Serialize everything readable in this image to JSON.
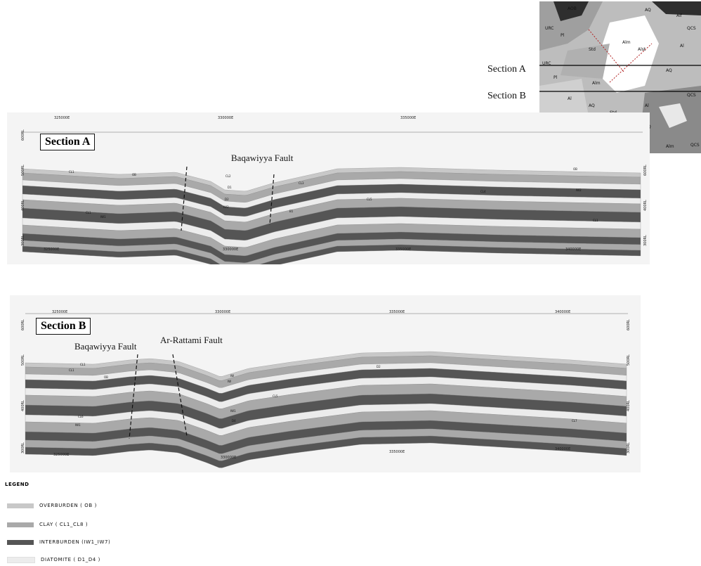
{
  "section_a": {
    "title": "Section A",
    "fault_label": "Baqawiyya Fault",
    "top_eastings": [
      "325000E",
      "330000E",
      "335000E"
    ],
    "bottom_eastings": [
      "325000E",
      "330000E",
      "335000E",
      "340000E"
    ],
    "left_rl": [
      "600RL",
      "500RL",
      "400RL",
      "300RL"
    ],
    "right_rl": [
      "600RL",
      "400RL",
      "300RL"
    ],
    "layer_tags": [
      "CL1",
      "OB",
      "CL2",
      "D1",
      "CL3",
      "D2",
      "IW2",
      "CL5",
      "B1",
      "IW1",
      "CL4",
      "IW2",
      "OB",
      "CL1",
      "CL1"
    ]
  },
  "section_b": {
    "title": "Section B",
    "fault_labels": [
      "Baqawiyya Fault",
      "Ar-Rattami Fault"
    ],
    "top_eastings": [
      "325000E",
      "330000E",
      "335000E",
      "340000E"
    ],
    "bottom_eastings": [
      "325000E",
      "330000E",
      "335000E",
      "340000E"
    ],
    "left_rl": [
      "600RL",
      "500RL",
      "400RL",
      "300RL"
    ],
    "right_rl": [
      "600RL",
      "500RL",
      "400RL",
      "300RL"
    ],
    "layer_tags": [
      "CL1",
      "CL1",
      "OB",
      "IW",
      "D2",
      "IW",
      "CL5",
      "IW1",
      "D4",
      "CL6",
      "IW1",
      "CL7"
    ]
  },
  "map": {
    "section_labels": [
      "Section A",
      "Section B"
    ],
    "unit_labels": [
      "AOB",
      "AQ",
      "Alf",
      "URC",
      "Pl",
      "Alm",
      "Std",
      "Alst",
      "Al",
      "QCS",
      "URC",
      "Pl",
      "AQ",
      "Al",
      "Alm",
      "AQ",
      "Std",
      "Alst",
      "Al",
      "QCS",
      "Pl",
      "AQ",
      "Alm",
      "Pl",
      "QCS"
    ]
  },
  "legend": {
    "title": "LEGEND",
    "items": [
      {
        "label": "OVERBURDEN ( OB )",
        "color": "#c8c8c8"
      },
      {
        "label": "CLAY ( CL1_CL8 )",
        "color": "#a9a9a9"
      },
      {
        "label": "INTERBURDEN (IW1_IW7)",
        "color": "#555555"
      },
      {
        "label": "DIATOMITE ( D1_D4 )",
        "color": "#ececec"
      }
    ]
  },
  "colors": {
    "overburden": "#c8c8c8",
    "clay": "#a9a9a9",
    "interburden": "#555555",
    "diatomite": "#ececec",
    "map_light": "#d9d9d9",
    "map_mid": "#9a9a9a",
    "map_dark": "#3a3a3a"
  }
}
